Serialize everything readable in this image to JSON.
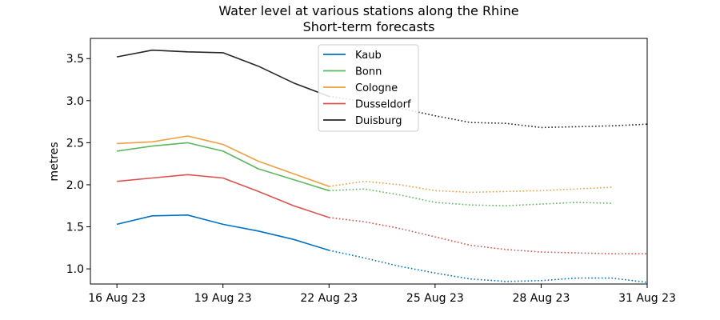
{
  "chart_data": {
    "type": "line",
    "title": "Water level at various stations along the Rhine",
    "subtitle": "Short-term forecasts",
    "xlabel": "",
    "ylabel": "metres",
    "x_tick_labels": [
      "16 Aug 23",
      "19 Aug 23",
      "22 Aug 23",
      "25 Aug 23",
      "28 Aug 23",
      "31 Aug 23"
    ],
    "x_tick_dates": [
      "2023-08-16",
      "2023-08-19",
      "2023-08-22",
      "2023-08-25",
      "2023-08-28",
      "2023-08-31"
    ],
    "xlim": [
      "2023-08-15T06:00",
      "2023-08-31T00:00"
    ],
    "ylim": [
      0.82,
      3.74
    ],
    "y_ticks": [
      1.0,
      1.5,
      2.0,
      2.5,
      3.0,
      3.5
    ],
    "y_tick_labels": [
      "1.0",
      "1.5",
      "2.0",
      "2.5",
      "3.0",
      "3.5"
    ],
    "grid": false,
    "legend_position": "top-center",
    "series": [
      {
        "name": "Kaub",
        "color": "#0072c6",
        "observed": {
          "x": [
            "2023-08-16",
            "2023-08-17",
            "2023-08-18",
            "2023-08-19",
            "2023-08-20",
            "2023-08-21",
            "2023-08-22"
          ],
          "y": [
            1.53,
            1.63,
            1.64,
            1.53,
            1.45,
            1.35,
            1.22
          ]
        },
        "forecast": {
          "x": [
            "2023-08-22",
            "2023-08-23",
            "2023-08-24",
            "2023-08-25",
            "2023-08-26",
            "2023-08-27",
            "2023-08-28",
            "2023-08-29",
            "2023-08-30",
            "2023-08-31"
          ],
          "y": [
            1.22,
            1.13,
            1.03,
            0.95,
            0.88,
            0.85,
            0.86,
            0.89,
            0.89,
            0.84
          ]
        }
      },
      {
        "name": "Bonn",
        "color": "#5cb85c",
        "observed": {
          "x": [
            "2023-08-16",
            "2023-08-17",
            "2023-08-18",
            "2023-08-19",
            "2023-08-20",
            "2023-08-21",
            "2023-08-22"
          ],
          "y": [
            2.4,
            2.46,
            2.5,
            2.4,
            2.19,
            2.06,
            1.93
          ]
        },
        "forecast": {
          "x": [
            "2023-08-22",
            "2023-08-23",
            "2023-08-24",
            "2023-08-25",
            "2023-08-26",
            "2023-08-27",
            "2023-08-28",
            "2023-08-29",
            "2023-08-30"
          ],
          "y": [
            1.93,
            1.95,
            1.88,
            1.79,
            1.76,
            1.75,
            1.77,
            1.79,
            1.78
          ]
        }
      },
      {
        "name": "Cologne",
        "color": "#f0a040",
        "observed": {
          "x": [
            "2023-08-16",
            "2023-08-17",
            "2023-08-18",
            "2023-08-19",
            "2023-08-20",
            "2023-08-21",
            "2023-08-22"
          ],
          "y": [
            2.49,
            2.51,
            2.58,
            2.48,
            2.28,
            2.13,
            1.98
          ]
        },
        "forecast": {
          "x": [
            "2023-08-22",
            "2023-08-23",
            "2023-08-24",
            "2023-08-25",
            "2023-08-26",
            "2023-08-27",
            "2023-08-28",
            "2023-08-29",
            "2023-08-30"
          ],
          "y": [
            1.98,
            2.04,
            2.0,
            1.93,
            1.91,
            1.92,
            1.93,
            1.95,
            1.97
          ]
        }
      },
      {
        "name": "Dusseldorf",
        "color": "#d9534f",
        "observed": {
          "x": [
            "2023-08-16",
            "2023-08-17",
            "2023-08-18",
            "2023-08-19",
            "2023-08-20",
            "2023-08-21",
            "2023-08-22"
          ],
          "y": [
            2.04,
            2.08,
            2.12,
            2.08,
            1.92,
            1.75,
            1.61
          ]
        },
        "forecast": {
          "x": [
            "2023-08-22",
            "2023-08-23",
            "2023-08-24",
            "2023-08-25",
            "2023-08-26",
            "2023-08-27",
            "2023-08-28",
            "2023-08-29",
            "2023-08-30",
            "2023-08-31"
          ],
          "y": [
            1.61,
            1.56,
            1.48,
            1.38,
            1.28,
            1.23,
            1.2,
            1.19,
            1.18,
            1.18
          ]
        }
      },
      {
        "name": "Duisburg",
        "color": "#262626",
        "observed": {
          "x": [
            "2023-08-16",
            "2023-08-17",
            "2023-08-18",
            "2023-08-19",
            "2023-08-20",
            "2023-08-21",
            "2023-08-22"
          ],
          "y": [
            3.52,
            3.6,
            3.58,
            3.57,
            3.41,
            3.21,
            3.05
          ]
        },
        "forecast": {
          "x": [
            "2023-08-22",
            "2023-08-23",
            "2023-08-24",
            "2023-08-25",
            "2023-08-26",
            "2023-08-27",
            "2023-08-28",
            "2023-08-29",
            "2023-08-30",
            "2023-08-31"
          ],
          "y": [
            3.05,
            2.99,
            2.91,
            2.82,
            2.74,
            2.73,
            2.68,
            2.69,
            2.7,
            2.72
          ]
        }
      }
    ]
  }
}
